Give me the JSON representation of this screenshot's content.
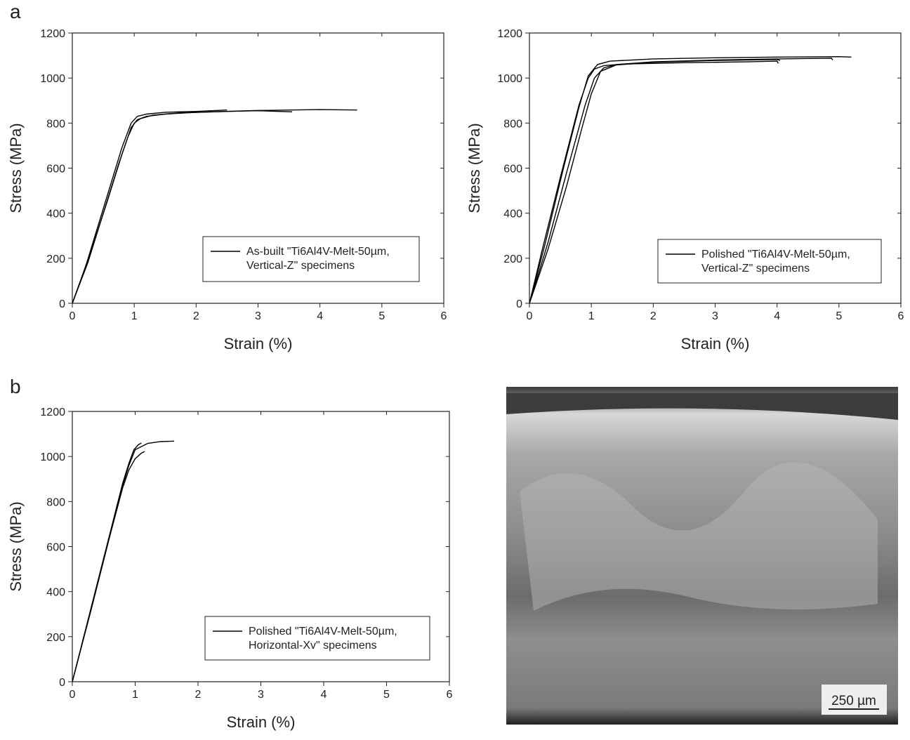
{
  "panel_labels": [
    "a",
    "b"
  ],
  "image": {
    "scale_bar": "250 µm"
  },
  "chart_data": [
    {
      "type": "line",
      "xlabel": "Strain (%)",
      "ylabel": "Stress (MPa)",
      "xlim": [
        0,
        6
      ],
      "ylim": [
        0,
        1200
      ],
      "xticks": [
        0,
        1,
        2,
        3,
        4,
        5,
        6
      ],
      "yticks": [
        0,
        200,
        400,
        600,
        800,
        1000,
        1200
      ],
      "legend": [
        "As-built \"Ti6Al4V-Melt-50µm,",
        "Vertical-Z\" specimens"
      ],
      "legend_loc": "lower right",
      "color": "#000000",
      "series": [
        {
          "x": [
            0,
            0.2,
            0.4,
            0.6,
            0.8,
            0.95,
            1.05,
            1.2,
            1.5,
            2,
            2.5
          ],
          "values": [
            0,
            150,
            330,
            510,
            690,
            800,
            830,
            840,
            848,
            852,
            858
          ]
        },
        {
          "x": [
            0,
            0.25,
            0.5,
            0.75,
            0.9,
            1.0,
            1.1,
            1.3,
            1.7,
            2.5,
            3.0,
            3.55
          ],
          "values": [
            0,
            180,
            400,
            620,
            740,
            800,
            820,
            835,
            845,
            852,
            855,
            850
          ]
        },
        {
          "x": [
            0,
            0.3,
            0.55,
            0.8,
            0.95,
            1.05,
            1.2,
            1.5,
            2.0,
            3.0,
            4.0,
            4.6
          ],
          "values": [
            0,
            230,
            440,
            660,
            780,
            815,
            830,
            840,
            848,
            856,
            860,
            858
          ]
        }
      ]
    },
    {
      "type": "line",
      "xlabel": "Strain (%)",
      "ylabel": "Stress (MPa)",
      "xlim": [
        0,
        6
      ],
      "ylim": [
        0,
        1200
      ],
      "xticks": [
        0,
        1,
        2,
        3,
        4,
        5,
        6
      ],
      "yticks": [
        0,
        200,
        400,
        600,
        800,
        1000,
        1200
      ],
      "legend": [
        "Polished \"Ti6Al4V-Melt-50µm,",
        "Vertical-Z\" specimens"
      ],
      "legend_loc": "lower right",
      "color": "#000000",
      "series": [
        {
          "x": [
            0,
            0.2,
            0.5,
            0.8,
            0.95,
            1.05,
            1.2,
            1.5,
            2.5,
            3.5,
            4.0,
            4.02
          ],
          "values": [
            0,
            230,
            560,
            880,
            1000,
            1040,
            1055,
            1062,
            1068,
            1072,
            1075,
            1065
          ]
        },
        {
          "x": [
            0,
            0.3,
            0.6,
            0.9,
            1.05,
            1.2,
            1.4,
            2.0,
            3.0,
            4.0,
            4.88,
            4.9
          ],
          "values": [
            0,
            270,
            580,
            880,
            1000,
            1045,
            1060,
            1072,
            1080,
            1085,
            1088,
            1080
          ]
        },
        {
          "x": [
            0,
            0.25,
            0.55,
            0.8,
            0.95,
            1.1,
            1.3,
            2.0,
            3.0,
            4.0,
            5.0,
            5.2
          ],
          "values": [
            0,
            260,
            600,
            870,
            1010,
            1060,
            1075,
            1085,
            1090,
            1093,
            1095,
            1093
          ]
        },
        {
          "x": [
            0,
            0.3,
            0.6,
            0.85,
            1.0,
            1.15,
            1.4,
            2.0,
            3.0,
            4.0,
            4.05
          ],
          "values": [
            0,
            240,
            520,
            780,
            930,
            1030,
            1058,
            1070,
            1078,
            1082,
            1078
          ]
        }
      ]
    },
    {
      "type": "line",
      "xlabel": "Strain (%)",
      "ylabel": "Stress (MPa)",
      "xlim": [
        0,
        6
      ],
      "ylim": [
        0,
        1200
      ],
      "xticks": [
        0,
        1,
        2,
        3,
        4,
        5,
        6
      ],
      "yticks": [
        0,
        200,
        400,
        600,
        800,
        1000,
        1200
      ],
      "legend": [
        "Polished \"Ti6Al4V-Melt-50µm,",
        "Horizontal-Xv\" specimens"
      ],
      "legend_loc": "lower right",
      "color": "#000000",
      "series": [
        {
          "x": [
            0,
            0.3,
            0.6,
            0.8,
            0.9,
            0.98,
            1.05,
            1.1
          ],
          "values": [
            0,
            330,
            660,
            880,
            970,
            1030,
            1052,
            1060
          ]
        },
        {
          "x": [
            0,
            0.3,
            0.6,
            0.8,
            0.9,
            1.0,
            1.1,
            1.15
          ],
          "values": [
            0,
            320,
            650,
            860,
            940,
            990,
            1015,
            1022
          ]
        },
        {
          "x": [
            0,
            0.3,
            0.6,
            0.8,
            0.9,
            1.0,
            1.2,
            1.4,
            1.62
          ],
          "values": [
            0,
            325,
            655,
            870,
            960,
            1030,
            1058,
            1066,
            1068
          ]
        }
      ]
    }
  ]
}
